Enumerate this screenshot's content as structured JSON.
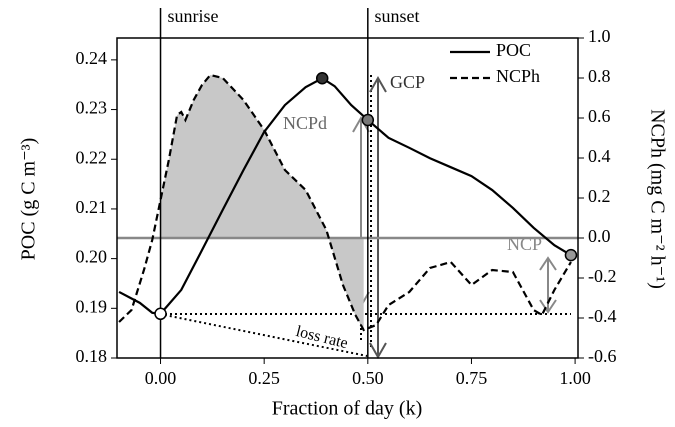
{
  "chart_data": {
    "type": "line",
    "x_label": "Fraction of day (k)",
    "y_label": "POC (g C m⁻³)",
    "y2_label": "NCPh (mg C m⁻² h⁻¹)",
    "annotations": [
      "sunrise",
      "sunset",
      "GCP",
      "NCPd",
      "NCP",
      "loss rate"
    ],
    "xlim": [
      -0.105,
      1.007
    ],
    "ylim": [
      0.18,
      0.2444
    ],
    "y2lim": [
      -0.6,
      1.0
    ],
    "xticks": [
      {
        "value": 0,
        "label": "0.00"
      },
      0.25,
      {
        "value": 0.5,
        "label": "0.50"
      },
      0.75,
      {
        "value": 1,
        "label": "1.00"
      }
    ],
    "yticks": [
      0.18,
      0.19,
      {
        "value": 0.2,
        "label": "0.20"
      },
      0.21,
      0.22,
      0.23,
      0.24
    ],
    "y2ticks": [
      -0.6,
      -0.4,
      -0.2,
      {
        "value": 0,
        "label": "0.0"
      },
      0.2,
      0.4,
      0.6,
      0.8,
      {
        "value": 1,
        "label": "1.0"
      }
    ],
    "legend": "upper right",
    "series": [
      {
        "name": "POC",
        "color": "#000000",
        "style": "solid",
        "x": [
          -0.1,
          -0.05,
          -0.02,
          0,
          0.05,
          0.1,
          0.15,
          0.2,
          0.25,
          0.3,
          0.35,
          0.39,
          0.42,
          0.46,
          0.5,
          0.55,
          0.6,
          0.65,
          0.7,
          0.75,
          0.8,
          0.85,
          0.9,
          0.95,
          0.99
        ],
        "values": [
          0.1933,
          0.1911,
          0.1891,
          0.1889,
          0.1937,
          0.2017,
          0.2098,
          0.2178,
          0.2255,
          0.2309,
          0.2345,
          0.2363,
          0.2347,
          0.2309,
          0.2279,
          0.2243,
          0.2223,
          0.2202,
          0.2184,
          0.2166,
          0.2138,
          0.2102,
          0.2062,
          0.2027,
          0.2007
        ]
      },
      {
        "name": "NCPh",
        "color": "#000000",
        "style": "dashed",
        "axis": "y2",
        "x": [
          -0.1,
          -0.07,
          -0.04,
          -0.02,
          0,
          0.02,
          0.04,
          0.05,
          0.06,
          0.08,
          0.1,
          0.12,
          0.15,
          0.2,
          0.25,
          0.3,
          0.35,
          0.4,
          0.44,
          0.47,
          0.49,
          0.52,
          0.55,
          0.6,
          0.65,
          0.7,
          0.75,
          0.8,
          0.85,
          0.9,
          0.92,
          0.95,
          0.99
        ],
        "values": [
          -0.42,
          -0.36,
          -0.16,
          -0.01,
          0.19,
          0.39,
          0.615,
          0.63,
          0.59,
          0.69,
          0.765,
          0.815,
          0.8,
          0.69,
          0.54,
          0.34,
          0.24,
          0.04,
          -0.235,
          -0.385,
          -0.46,
          -0.435,
          -0.335,
          -0.27,
          -0.15,
          -0.12,
          -0.235,
          -0.16,
          -0.17,
          -0.36,
          -0.385,
          -0.26,
          -0.12
        ]
      }
    ]
  }
}
